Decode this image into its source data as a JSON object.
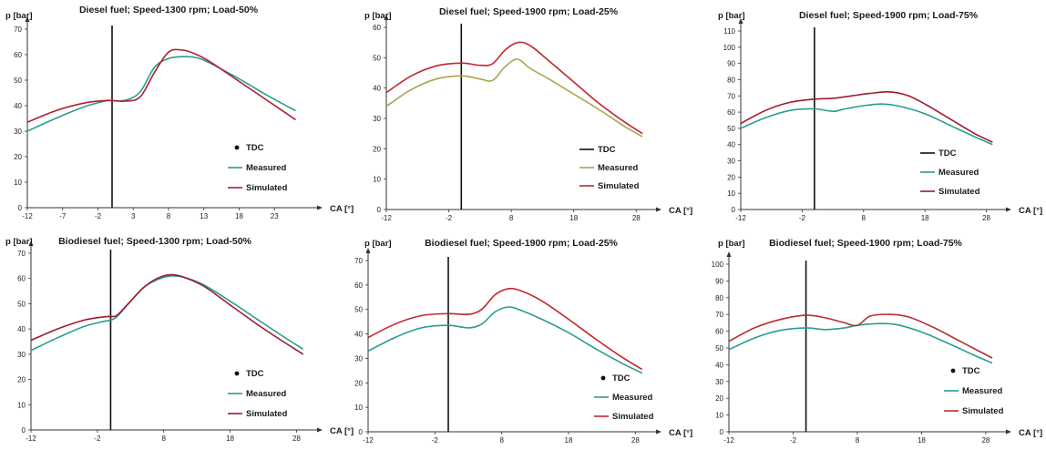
{
  "chart_data": [
    {
      "type": "line",
      "title": "Diesel fuel; Speed-1300 rpm; Load-50%",
      "ylabel": "p [bar]",
      "xlabel": "CA [°]",
      "xlim": [
        -12,
        28
      ],
      "ylim": [
        0,
        70
      ],
      "x_ticks": [
        -12,
        -7,
        -2,
        3,
        8,
        13,
        18,
        23
      ],
      "y_ticks": [
        0,
        10,
        20,
        30,
        40,
        50,
        60,
        70
      ],
      "tdc_x": 0,
      "legend": {
        "position": "right-middle",
        "style": "dot",
        "entries": [
          "TDC",
          "Measured",
          "Simulated"
        ]
      },
      "series": [
        {
          "name": "Measured",
          "color": "#2a9d8f",
          "x": [
            -12,
            -8,
            -4,
            -1,
            0,
            2,
            4,
            6,
            8,
            10,
            12,
            14,
            18,
            22,
            26
          ],
          "y": [
            30,
            35,
            39.5,
            41.8,
            42,
            42.2,
            45.5,
            55,
            58.5,
            59.2,
            58.8,
            56.5,
            50.5,
            44,
            38
          ]
        },
        {
          "name": "Simulated",
          "color": "#b01e2d",
          "x": [
            -12,
            -8,
            -4,
            -1,
            0,
            2,
            4,
            6,
            8,
            10,
            12,
            14,
            18,
            22,
            26
          ],
          "y": [
            33.5,
            38,
            41,
            42,
            42,
            41.8,
            43.5,
            53,
            61,
            61.8,
            60,
            57,
            49.5,
            42,
            34.5
          ]
        }
      ]
    },
    {
      "type": "line",
      "title": "Diesel fuel; Speed-1900 rpm; Load-25%",
      "ylabel": "p [bar]",
      "xlabel": "CA [°]",
      "xlim": [
        -12,
        30
      ],
      "ylim": [
        0,
        60
      ],
      "x_ticks": [
        -12,
        -2,
        8,
        18,
        28
      ],
      "y_ticks": [
        0,
        10,
        20,
        30,
        40,
        50,
        60
      ],
      "tdc_x": 0,
      "legend": {
        "position": "right-middle",
        "style": "line",
        "entries": [
          "TDC",
          "Measured",
          "Simulated"
        ]
      },
      "series": [
        {
          "name": "Measured",
          "color": "#a9a64e",
          "x": [
            -12,
            -8,
            -4,
            0,
            3,
            5,
            7,
            9,
            11,
            14,
            18,
            22,
            26,
            29
          ],
          "y": [
            34,
            39.5,
            43,
            44,
            43,
            42.5,
            47,
            49.5,
            46.5,
            43,
            38,
            33,
            27.5,
            24
          ]
        },
        {
          "name": "Simulated",
          "color": "#c1272d",
          "x": [
            -12,
            -8,
            -4,
            0,
            3,
            5,
            7,
            9,
            11,
            14,
            18,
            22,
            26,
            29
          ],
          "y": [
            38.5,
            44,
            47.3,
            48.2,
            47.5,
            48,
            52.5,
            55,
            54,
            49,
            42,
            35,
            29,
            25
          ]
        }
      ]
    },
    {
      "type": "line",
      "title": "Diesel fuel; Speed-1900 rpm; Load-75%",
      "ylabel": "p [bar]",
      "xlabel": "CA [°]",
      "xlim": [
        -12,
        30
      ],
      "ylim": [
        0,
        110
      ],
      "x_ticks": [
        -12,
        -2,
        8,
        18,
        28
      ],
      "y_ticks": [
        0,
        10,
        20,
        30,
        40,
        50,
        60,
        70,
        80,
        90,
        100,
        110
      ],
      "tdc_x": 0,
      "legend": {
        "position": "right-middle",
        "style": "line",
        "entries": [
          "TDC",
          "Measured",
          "Simulated"
        ]
      },
      "series": [
        {
          "name": "Measured",
          "color": "#2a9d8f",
          "x": [
            -12,
            -8,
            -4,
            0,
            3,
            5,
            8,
            11,
            14,
            18,
            22,
            26,
            29
          ],
          "y": [
            50,
            56.5,
            61,
            62,
            60.5,
            62,
            64,
            65,
            63.5,
            59,
            52,
            45,
            40
          ]
        },
        {
          "name": "Simulated",
          "color": "#9b1c2c",
          "x": [
            -12,
            -8,
            -4,
            0,
            3,
            6,
            9,
            12,
            15,
            18,
            22,
            26,
            29
          ],
          "y": [
            53,
            61,
            66,
            68,
            68.5,
            70,
            71.5,
            72.5,
            70.5,
            65,
            56,
            47,
            41.5
          ]
        }
      ]
    },
    {
      "type": "line",
      "title": "Biodiesel fuel; Speed-1300 rpm; Load-50%",
      "ylabel": "p [bar]",
      "xlabel": "CA [°]",
      "xlim": [
        -12,
        30
      ],
      "ylim": [
        0,
        70
      ],
      "x_ticks": [
        -12,
        -2,
        8,
        18,
        28
      ],
      "y_ticks": [
        0,
        10,
        20,
        30,
        40,
        50,
        60,
        70
      ],
      "tdc_x": 0,
      "legend": {
        "position": "right-middle",
        "style": "dot",
        "entries": [
          "TDC",
          "Measured",
          "Simulated"
        ]
      },
      "series": [
        {
          "name": "Measured",
          "color": "#2a9d8f",
          "x": [
            -12,
            -8,
            -4,
            -1,
            0,
            1,
            3,
            5,
            7,
            9,
            11,
            14,
            18,
            22,
            26,
            29
          ],
          "y": [
            31.5,
            36.5,
            41,
            43,
            43.5,
            45,
            51,
            56.5,
            59.5,
            61,
            60.5,
            57.5,
            51,
            44,
            37,
            32
          ]
        },
        {
          "name": "Simulated",
          "color": "#9b1c2c",
          "x": [
            -12,
            -8,
            -4,
            -1,
            0,
            1,
            3,
            5,
            7,
            9,
            11,
            14,
            18,
            22,
            26,
            29
          ],
          "y": [
            35.5,
            40,
            43.5,
            44.8,
            45,
            45.5,
            51,
            56.5,
            60,
            61.5,
            60.5,
            57,
            49.5,
            42,
            35,
            30
          ]
        }
      ]
    },
    {
      "type": "line",
      "title": "Biodiesel fuel; Speed-1900 rpm; Load-25%",
      "ylabel": "p [bar]",
      "xlabel": "CA [°]",
      "xlim": [
        -12,
        30
      ],
      "ylim": [
        0,
        70
      ],
      "x_ticks": [
        -12,
        -2,
        8,
        18,
        28
      ],
      "y_ticks": [
        0,
        10,
        20,
        30,
        40,
        50,
        60,
        70
      ],
      "tdc_x": 0,
      "legend": {
        "position": "right-middle",
        "style": "dot",
        "entries": [
          "TDC",
          "Measured",
          "Simulated"
        ]
      },
      "series": [
        {
          "name": "Measured",
          "color": "#2a9d8f",
          "x": [
            -12,
            -8,
            -4,
            0,
            3,
            5,
            7,
            9,
            11,
            14,
            18,
            22,
            26,
            29
          ],
          "y": [
            33,
            38.5,
            42.5,
            43.5,
            42.5,
            44,
            49,
            51,
            49.5,
            46,
            40.5,
            34,
            28,
            24
          ]
        },
        {
          "name": "Simulated",
          "color": "#c1272d",
          "x": [
            -12,
            -8,
            -4,
            0,
            3,
            5,
            7,
            9,
            11,
            14,
            18,
            22,
            26,
            29
          ],
          "y": [
            38.5,
            44,
            47.5,
            48.3,
            48,
            50,
            56,
            58.5,
            57.5,
            53.5,
            46,
            38,
            30.5,
            25.5
          ]
        }
      ]
    },
    {
      "type": "line",
      "title": "Biodiesel fuel; Speed-1900 rpm; Load-75%",
      "ylabel": "p [bar]",
      "xlabel": "CA [°]",
      "xlim": [
        -12,
        30
      ],
      "ylim": [
        0,
        100
      ],
      "x_ticks": [
        -12,
        -2,
        8,
        18,
        28
      ],
      "y_ticks": [
        0,
        10,
        20,
        30,
        40,
        50,
        60,
        70,
        80,
        90,
        100
      ],
      "tdc_x": 0,
      "legend": {
        "position": "right-middle",
        "style": "dot",
        "entries": [
          "TDC",
          "Measured",
          "Simulated"
        ]
      },
      "series": [
        {
          "name": "Measured",
          "color": "#2a9d8f",
          "x": [
            -12,
            -8,
            -4,
            0,
            3,
            6,
            8,
            11,
            14,
            18,
            22,
            26,
            29
          ],
          "y": [
            49,
            56,
            60.5,
            62,
            61,
            62,
            63.5,
            64.5,
            64,
            59.5,
            53,
            46,
            41
          ]
        },
        {
          "name": "Simulated",
          "color": "#b5302f",
          "x": [
            -12,
            -8,
            -4,
            0,
            3,
            6,
            8,
            10,
            13,
            16,
            20,
            24,
            29
          ],
          "y": [
            54,
            62,
            67,
            69.5,
            68,
            65,
            63.5,
            69,
            70,
            68.5,
            62,
            54,
            44
          ]
        }
      ]
    }
  ]
}
